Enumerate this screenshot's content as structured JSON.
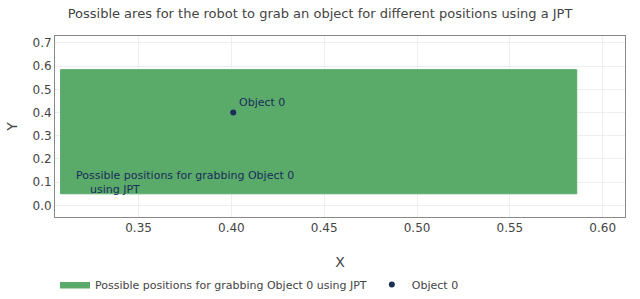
{
  "chart_data": {
    "type": "scatter",
    "title": "Possible ares for the robot to grab an object for different positions using a JPT",
    "x_label": "X",
    "y_label": "Y",
    "xlim": [
      0.305,
      0.612
    ],
    "ylim": [
      -0.05,
      0.73
    ],
    "xticks": [
      0.35,
      {
        "value": 0.4,
        "label": "0.40"
      },
      0.45,
      {
        "value": 0.5,
        "label": "0.50"
      },
      0.55,
      {
        "value": 0.6,
        "label": "0.60"
      }
    ],
    "yticks": [
      {
        "value": 0.0,
        "label": "0.0"
      },
      0.1,
      0.2,
      0.3,
      0.4,
      0.5,
      0.6,
      0.7
    ],
    "grid": true,
    "legend": "bottom",
    "series": [
      {
        "name": "Possible positions for grabbing Object 0 using JPT",
        "type": "rectangle",
        "color": "#5aaa6a",
        "x": 0.308,
        "y": 0.05,
        "width": 0.278,
        "height": 0.535
      },
      {
        "name": "Object 0",
        "type": "point",
        "color": "#1a2e5a",
        "x": [
          0.401
        ],
        "y": [
          0.4
        ]
      }
    ],
    "annotations": [
      {
        "text": "Object 0",
        "x": 0.401,
        "y": 0.4,
        "color": "#1a2e5a"
      },
      {
        "text": "Possible positions for grabbing Object 0\n    using JPT",
        "x": 0.315,
        "y": 0.03,
        "color": "#1a2e5a"
      }
    ]
  }
}
